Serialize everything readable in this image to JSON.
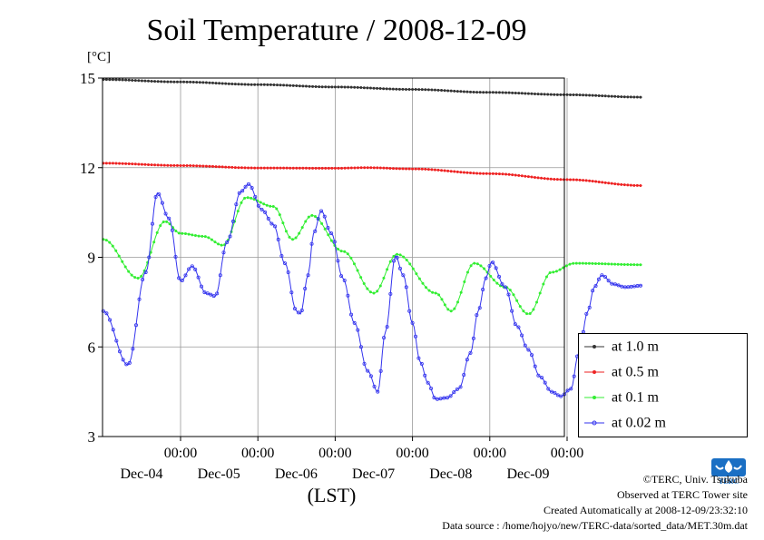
{
  "chart_data": {
    "type": "line",
    "title": "Soil Temperature / 2008-12-09",
    "ylabel": "[°C]",
    "xlabel": "(LST)",
    "ylim": [
      3,
      15
    ],
    "yticks": [
      "15",
      "12",
      "9",
      "6",
      "3"
    ],
    "x_days": [
      {
        "time": "00:00",
        "date": "Dec-04"
      },
      {
        "time": "00:00",
        "date": "Dec-05"
      },
      {
        "time": "00:00",
        "date": "Dec-06"
      },
      {
        "time": "00:00",
        "date": "Dec-07"
      },
      {
        "time": "00:00",
        "date": "Dec-08"
      },
      {
        "time": "00:00",
        "date": "Dec-09"
      }
    ],
    "grid": true,
    "legend_position": "lower-right, outside plot",
    "series": [
      {
        "name": "at 1.0 m",
        "color": "#333333",
        "points": [
          [
            -1,
            14.95
          ],
          [
            0,
            14.87
          ],
          [
            1,
            14.78
          ],
          [
            2,
            14.7
          ],
          [
            3,
            14.62
          ],
          [
            4,
            14.52
          ],
          [
            5,
            14.44
          ],
          [
            5.97,
            14.36
          ]
        ]
      },
      {
        "name": "at 0.5 m",
        "color": "#ee2222",
        "points": [
          [
            -1,
            12.15
          ],
          [
            0,
            12.07
          ],
          [
            1,
            11.99
          ],
          [
            2,
            11.98
          ],
          [
            2.4,
            12.0
          ],
          [
            3,
            11.96
          ],
          [
            4,
            11.8
          ],
          [
            5,
            11.6
          ],
          [
            5.97,
            11.4
          ]
        ]
      },
      {
        "name": "at 0.1 m",
        "color": "#33ee33",
        "points": [
          [
            -1,
            9.6
          ],
          [
            -0.55,
            8.3
          ],
          [
            -0.2,
            10.2
          ],
          [
            0,
            9.8
          ],
          [
            0.3,
            9.7
          ],
          [
            0.55,
            9.4
          ],
          [
            0.85,
            11.0
          ],
          [
            1.2,
            10.7
          ],
          [
            1.45,
            9.6
          ],
          [
            1.7,
            10.4
          ],
          [
            2.1,
            9.2
          ],
          [
            2.5,
            7.8
          ],
          [
            2.8,
            9.1
          ],
          [
            3.3,
            7.8
          ],
          [
            3.5,
            7.2
          ],
          [
            3.8,
            8.8
          ],
          [
            4.2,
            8.0
          ],
          [
            4.5,
            7.1
          ],
          [
            4.8,
            8.5
          ],
          [
            5.1,
            8.8
          ],
          [
            5.97,
            8.75
          ]
        ]
      },
      {
        "name": "at 0.02 m",
        "color": "#3333ee",
        "points": [
          [
            -1,
            7.2
          ],
          [
            -0.68,
            5.4
          ],
          [
            -0.45,
            8.5
          ],
          [
            -0.3,
            11.15
          ],
          [
            -0.15,
            10.3
          ],
          [
            0,
            8.2
          ],
          [
            0.15,
            8.7
          ],
          [
            0.33,
            7.8
          ],
          [
            0.45,
            7.7
          ],
          [
            0.6,
            9.5
          ],
          [
            0.78,
            11.2
          ],
          [
            0.88,
            11.45
          ],
          [
            1.05,
            10.6
          ],
          [
            1.2,
            10.1
          ],
          [
            1.35,
            8.8
          ],
          [
            1.5,
            7.2
          ],
          [
            1.55,
            7.1
          ],
          [
            1.65,
            8.4
          ],
          [
            1.72,
            9.8
          ],
          [
            1.82,
            10.55
          ],
          [
            1.95,
            9.8
          ],
          [
            2.1,
            8.3
          ],
          [
            2.25,
            6.8
          ],
          [
            2.42,
            5.2
          ],
          [
            2.55,
            4.5
          ],
          [
            2.65,
            6.5
          ],
          [
            2.78,
            9.05
          ],
          [
            2.88,
            8.4
          ],
          [
            3.0,
            6.8
          ],
          [
            3.1,
            5.5
          ],
          [
            3.2,
            4.8
          ],
          [
            3.3,
            4.25
          ],
          [
            3.45,
            4.3
          ],
          [
            3.6,
            4.6
          ],
          [
            3.75,
            5.8
          ],
          [
            3.85,
            7.2
          ],
          [
            3.95,
            8.3
          ],
          [
            4.02,
            8.85
          ],
          [
            4.2,
            8.0
          ],
          [
            4.35,
            6.7
          ],
          [
            4.5,
            5.9
          ],
          [
            4.65,
            5.0
          ],
          [
            4.8,
            4.5
          ],
          [
            4.92,
            4.35
          ],
          [
            5.05,
            4.6
          ],
          [
            5.15,
            5.8
          ],
          [
            5.27,
            7.2
          ],
          [
            5.35,
            8.0
          ],
          [
            5.45,
            8.4
          ],
          [
            5.6,
            8.1
          ],
          [
            5.75,
            8.0
          ],
          [
            5.97,
            8.05
          ]
        ]
      }
    ]
  },
  "unit_label": "[°C]",
  "credits": {
    "copyright": "©TERC, Univ. Tsukuba",
    "site": "Observed at TERC Tower site",
    "created": "Created Automatically at 2008-12-09/23:32:10",
    "source": "Data source : /home/hojyo/new/TERC-data/sorted_data/MET.30m.dat"
  },
  "logo": {
    "text": "TERC",
    "color": "#1a6fc4"
  }
}
